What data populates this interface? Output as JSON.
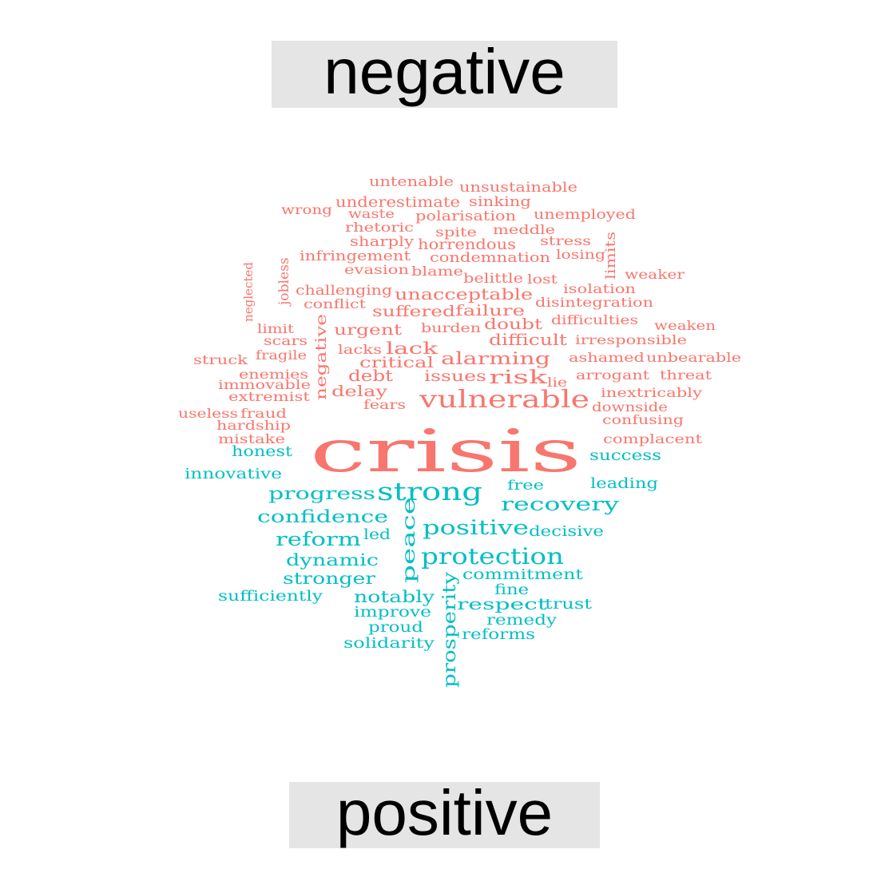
{
  "colors": {
    "negative": "#f8766d",
    "positive": "#00bfc4",
    "box": "#e5e5e5"
  },
  "labels": {
    "negative": "negative",
    "positive": "positive"
  },
  "words": [
    {
      "text": "untenable",
      "sentiment": "negative"
    },
    {
      "text": "unsustainable",
      "sentiment": "negative"
    },
    {
      "text": "wrong",
      "sentiment": "negative"
    },
    {
      "text": "underestimate",
      "sentiment": "negative"
    },
    {
      "text": "sinking",
      "sentiment": "negative"
    },
    {
      "text": "waste",
      "sentiment": "negative"
    },
    {
      "text": "polarisation",
      "sentiment": "negative"
    },
    {
      "text": "unemployed",
      "sentiment": "negative"
    },
    {
      "text": "rhetoric",
      "sentiment": "negative"
    },
    {
      "text": "spite",
      "sentiment": "negative"
    },
    {
      "text": "meddle",
      "sentiment": "negative"
    },
    {
      "text": "sharply",
      "sentiment": "negative"
    },
    {
      "text": "horrendous",
      "sentiment": "negative"
    },
    {
      "text": "stress",
      "sentiment": "negative"
    },
    {
      "text": "limits",
      "sentiment": "negative"
    },
    {
      "text": "infringement",
      "sentiment": "negative"
    },
    {
      "text": "condemnation",
      "sentiment": "negative"
    },
    {
      "text": "losing",
      "sentiment": "negative"
    },
    {
      "text": "jobless",
      "sentiment": "negative"
    },
    {
      "text": "evasion",
      "sentiment": "negative"
    },
    {
      "text": "blame",
      "sentiment": "negative"
    },
    {
      "text": "weaker",
      "sentiment": "negative"
    },
    {
      "text": "neglected",
      "sentiment": "negative"
    },
    {
      "text": "belittle",
      "sentiment": "negative"
    },
    {
      "text": "lost",
      "sentiment": "negative"
    },
    {
      "text": "challenging",
      "sentiment": "negative"
    },
    {
      "text": "isolation",
      "sentiment": "negative"
    },
    {
      "text": "unacceptable",
      "sentiment": "negative"
    },
    {
      "text": "conflict",
      "sentiment": "negative"
    },
    {
      "text": "disintegration",
      "sentiment": "negative"
    },
    {
      "text": "suffered",
      "sentiment": "negative"
    },
    {
      "text": "failure",
      "sentiment": "negative"
    },
    {
      "text": "difficulties",
      "sentiment": "negative"
    },
    {
      "text": "limit",
      "sentiment": "negative"
    },
    {
      "text": "negative",
      "sentiment": "negative"
    },
    {
      "text": "urgent",
      "sentiment": "negative"
    },
    {
      "text": "burden",
      "sentiment": "negative"
    },
    {
      "text": "doubt",
      "sentiment": "negative"
    },
    {
      "text": "weaken",
      "sentiment": "negative"
    },
    {
      "text": "scars",
      "sentiment": "negative"
    },
    {
      "text": "difficult",
      "sentiment": "negative"
    },
    {
      "text": "irresponsible",
      "sentiment": "negative"
    },
    {
      "text": "lacks",
      "sentiment": "negative"
    },
    {
      "text": "lack",
      "sentiment": "negative"
    },
    {
      "text": "fragile",
      "sentiment": "negative"
    },
    {
      "text": "struck",
      "sentiment": "negative"
    },
    {
      "text": "alarming",
      "sentiment": "negative"
    },
    {
      "text": "ashamed",
      "sentiment": "negative"
    },
    {
      "text": "unbearable",
      "sentiment": "negative"
    },
    {
      "text": "critical",
      "sentiment": "negative"
    },
    {
      "text": "enemies",
      "sentiment": "negative"
    },
    {
      "text": "issues",
      "sentiment": "negative"
    },
    {
      "text": "risk",
      "sentiment": "negative"
    },
    {
      "text": "arrogant",
      "sentiment": "negative"
    },
    {
      "text": "threat",
      "sentiment": "negative"
    },
    {
      "text": "debt",
      "sentiment": "negative"
    },
    {
      "text": "immovable",
      "sentiment": "negative"
    },
    {
      "text": "lie",
      "sentiment": "negative"
    },
    {
      "text": "delay",
      "sentiment": "negative"
    },
    {
      "text": "inextricably",
      "sentiment": "negative"
    },
    {
      "text": "extremist",
      "sentiment": "negative"
    },
    {
      "text": "vulnerable",
      "sentiment": "negative"
    },
    {
      "text": "fears",
      "sentiment": "negative"
    },
    {
      "text": "downside",
      "sentiment": "negative"
    },
    {
      "text": "useless",
      "sentiment": "negative"
    },
    {
      "text": "fraud",
      "sentiment": "negative"
    },
    {
      "text": "confusing",
      "sentiment": "negative"
    },
    {
      "text": "hardship",
      "sentiment": "negative"
    },
    {
      "text": "crisis",
      "sentiment": "negative"
    },
    {
      "text": "mistake",
      "sentiment": "negative"
    },
    {
      "text": "complacent",
      "sentiment": "negative"
    },
    {
      "text": "honest",
      "sentiment": "positive"
    },
    {
      "text": "success",
      "sentiment": "positive"
    },
    {
      "text": "innovative",
      "sentiment": "positive"
    },
    {
      "text": "free",
      "sentiment": "positive"
    },
    {
      "text": "leading",
      "sentiment": "positive"
    },
    {
      "text": "progress",
      "sentiment": "positive"
    },
    {
      "text": "strong",
      "sentiment": "positive"
    },
    {
      "text": "recovery",
      "sentiment": "positive"
    },
    {
      "text": "confidence",
      "sentiment": "positive"
    },
    {
      "text": "peace",
      "sentiment": "positive"
    },
    {
      "text": "positive",
      "sentiment": "positive"
    },
    {
      "text": "reform",
      "sentiment": "positive"
    },
    {
      "text": "led",
      "sentiment": "positive"
    },
    {
      "text": "decisive",
      "sentiment": "positive"
    },
    {
      "text": "dynamic",
      "sentiment": "positive"
    },
    {
      "text": "protection",
      "sentiment": "positive"
    },
    {
      "text": "stronger",
      "sentiment": "positive"
    },
    {
      "text": "commitment",
      "sentiment": "positive"
    },
    {
      "text": "sufficiently",
      "sentiment": "positive"
    },
    {
      "text": "notably",
      "sentiment": "positive"
    },
    {
      "text": "fine",
      "sentiment": "positive"
    },
    {
      "text": "prosperity",
      "sentiment": "positive"
    },
    {
      "text": "respect",
      "sentiment": "positive"
    },
    {
      "text": "trust",
      "sentiment": "positive"
    },
    {
      "text": "improve",
      "sentiment": "positive"
    },
    {
      "text": "remedy",
      "sentiment": "positive"
    },
    {
      "text": "proud",
      "sentiment": "positive"
    },
    {
      "text": "reforms",
      "sentiment": "positive"
    },
    {
      "text": "solidarity",
      "sentiment": "positive"
    }
  ]
}
